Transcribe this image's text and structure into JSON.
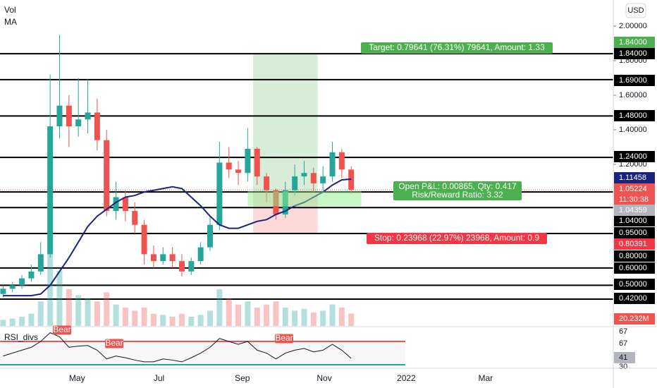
{
  "chart_data": {
    "type": "candlestick",
    "indicators": {
      "volume": "Vol",
      "ma": "MA",
      "rsi": "RSI_divs"
    },
    "currency": "USD",
    "x": [
      65,
      72,
      79,
      86,
      93,
      100,
      107,
      114,
      121,
      128,
      135,
      142,
      149,
      156,
      163,
      170,
      177,
      184,
      191,
      198,
      205,
      212,
      219,
      226,
      233,
      240,
      247,
      254,
      261,
      268,
      275,
      282,
      289,
      296,
      303,
      310,
      317,
      324
    ],
    "open": [
      0.45,
      0.48,
      0.5,
      0.54,
      0.58,
      0.68,
      1.42,
      1.54,
      1.42,
      1.46,
      1.5,
      1.34,
      0.93,
      1.01,
      0.93,
      0.85,
      0.68,
      0.64,
      0.68,
      0.64,
      0.58,
      0.64,
      0.72,
      0.85,
      1.21,
      1.17,
      1.15,
      1.29,
      1.13,
      1.05,
      0.91,
      1.05,
      1.13,
      1.15,
      1.09,
      1.13,
      1.27,
      1.17
    ],
    "high": [
      0.5,
      0.52,
      0.56,
      0.62,
      0.75,
      1.72,
      1.95,
      1.6,
      1.7,
      1.69,
      1.58,
      1.4,
      1.1,
      1.05,
      0.98,
      0.88,
      0.73,
      0.72,
      0.72,
      0.68,
      0.66,
      0.75,
      0.9,
      1.33,
      1.3,
      1.22,
      1.41,
      1.3,
      1.15,
      1.06,
      1.1,
      1.2,
      1.22,
      1.18,
      1.19,
      1.33,
      1.29,
      1.19
    ],
    "low": [
      0.43,
      0.46,
      0.48,
      0.52,
      0.56,
      0.66,
      1.35,
      1.3,
      1.36,
      1.38,
      1.28,
      0.9,
      0.88,
      0.87,
      0.8,
      0.62,
      0.6,
      0.62,
      0.6,
      0.55,
      0.56,
      0.62,
      0.7,
      0.82,
      1.12,
      1.08,
      1.1,
      1.08,
      0.98,
      0.88,
      0.89,
      1.02,
      1.08,
      1.04,
      1.05,
      1.1,
      1.12,
      1.03
    ],
    "close": [
      0.48,
      0.5,
      0.54,
      0.58,
      0.68,
      1.42,
      1.54,
      1.42,
      1.46,
      1.5,
      1.34,
      0.93,
      1.01,
      0.93,
      0.85,
      0.68,
      0.64,
      0.68,
      0.64,
      0.58,
      0.64,
      0.72,
      0.85,
      1.21,
      1.17,
      1.15,
      1.29,
      1.13,
      1.05,
      0.91,
      1.05,
      1.13,
      1.15,
      1.09,
      1.13,
      1.27,
      1.17,
      1.05224
    ],
    "close_label": "1.05224",
    "countdown": "11:30:38",
    "ma": {
      "color": "#1a237e",
      "values": [
        0.44,
        0.44,
        0.44,
        0.44,
        0.45,
        0.5,
        0.58,
        0.66,
        0.75,
        0.84,
        0.9,
        0.94,
        0.98,
        1.01,
        1.02,
        1.04,
        1.05,
        1.06,
        1.07,
        1.06,
        1.01,
        0.96,
        0.9,
        0.85,
        0.83,
        0.83,
        0.85,
        0.87,
        0.88,
        0.91,
        0.93,
        0.96,
        0.98,
        1.01,
        1.04,
        1.08,
        1.11,
        1.11458
      ],
      "last_label": "1.11458"
    },
    "volume": {
      "values": [
        10,
        12,
        15,
        20,
        40,
        120,
        90,
        60,
        50,
        45,
        40,
        55,
        35,
        30,
        25,
        30,
        20,
        18,
        15,
        20,
        15,
        18,
        25,
        60,
        45,
        35,
        40,
        30,
        35,
        40,
        30,
        25,
        28,
        22,
        25,
        35,
        30,
        20.232
      ],
      "last_label": "20.232M",
      "ylim": [
        0,
        150
      ]
    },
    "rsi": {
      "values": [
        45,
        50,
        55,
        60,
        70,
        85,
        78,
        60,
        62,
        63,
        55,
        40,
        45,
        42,
        38,
        35,
        35,
        40,
        38,
        35,
        42,
        50,
        60,
        75,
        70,
        65,
        70,
        55,
        50,
        40,
        50,
        55,
        58,
        52,
        55,
        65,
        55,
        41
      ],
      "ylim": [
        24,
        93
      ],
      "levels": [
        70,
        30
      ],
      "axis_labels": [
        "67",
        "67",
        "41",
        "30"
      ],
      "signals": [
        "Bear",
        "Bear",
        "Bear"
      ]
    },
    "xlim": [
      62.7,
      519
    ],
    "xticks": [
      {
        "value": 120,
        "label": "May"
      },
      {
        "value": 181,
        "label": "Jul"
      },
      {
        "value": 243,
        "label": "Sep"
      },
      {
        "value": 304,
        "label": "Nov"
      },
      {
        "value": 365,
        "label": "2022"
      },
      {
        "value": 424,
        "label": "Mar"
      }
    ],
    "ylim": [
      0.265,
      2.151
    ],
    "yticks": [
      {
        "value": 2.0,
        "label": "2.00000"
      },
      {
        "value": 1.8,
        "label": "1.80000"
      },
      {
        "value": 1.6,
        "label": "1.60000"
      },
      {
        "value": 1.4,
        "label": "1.40000"
      },
      {
        "value": 1.2,
        "label": "1.20000"
      }
    ],
    "levels": [
      {
        "value": 1.84,
        "label": "1.84000"
      },
      {
        "value": 1.69,
        "label": "1.69000"
      },
      {
        "value": 1.48,
        "label": "1.48000"
      },
      {
        "value": 1.24,
        "label": "1.24000"
      },
      {
        "value": 1.04,
        "label": "1.04000"
      },
      {
        "value": 0.95,
        "label": "0.95000"
      },
      {
        "value": 0.8,
        "label": "0.80000"
      },
      {
        "value": 0.6,
        "label": "0.60000"
      },
      {
        "value": 0.5,
        "label": "0.50000"
      },
      {
        "value": 0.42,
        "label": "0.42000"
      }
    ],
    "position": {
      "entry": {
        "value": 1.04359,
        "label": "1.04359"
      },
      "target": {
        "value": 1.84,
        "label": "1.84000",
        "text": "Target: 0.79641 (76.31%) 79641, Amount: 1.33"
      },
      "stop": {
        "value": 0.80391,
        "label": "0.80391",
        "text": "Stop: 0.23968 (22.97%) 23968, Amount: 0.9"
      },
      "pnl_text": "Open P&L: 0.00865, Qty: 0.417",
      "ratio_text": "Risk/Reward Ratio: 3.32",
      "start": 251,
      "end": 299
    }
  }
}
